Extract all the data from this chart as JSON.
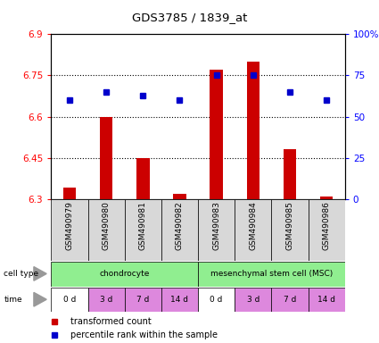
{
  "title": "GDS3785 / 1839_at",
  "samples": [
    "GSM490979",
    "GSM490980",
    "GSM490981",
    "GSM490982",
    "GSM490983",
    "GSM490984",
    "GSM490985",
    "GSM490986"
  ],
  "red_values": [
    6.34,
    6.6,
    6.45,
    6.32,
    6.77,
    6.8,
    6.48,
    6.31
  ],
  "blue_percentiles": [
    60,
    65,
    63,
    60,
    75,
    75,
    65,
    60
  ],
  "ylim_left": [
    6.3,
    6.9
  ],
  "ylim_right": [
    0,
    100
  ],
  "yticks_left": [
    6.3,
    6.45,
    6.6,
    6.75,
    6.9
  ],
  "yticks_right": [
    0,
    25,
    50,
    75,
    100
  ],
  "ytick_labels_left": [
    "6.3",
    "6.45",
    "6.6",
    "6.75",
    "6.9"
  ],
  "ytick_labels_right": [
    "0",
    "25",
    "50",
    "75",
    "100%"
  ],
  "cell_type_labels": [
    "chondrocyte",
    "mesenchymal stem cell (MSC)"
  ],
  "cell_type_color": "#90ee90",
  "time_labels": [
    "0 d",
    "3 d",
    "7 d",
    "14 d",
    "0 d",
    "3 d",
    "7 d",
    "14 d"
  ],
  "time_colors": [
    "#ffffff",
    "#dd88dd",
    "#dd88dd",
    "#dd88dd",
    "#ffffff",
    "#dd88dd",
    "#dd88dd",
    "#dd88dd"
  ],
  "bar_color": "#cc0000",
  "dot_color": "#0000cc",
  "base_value": 6.3,
  "legend_items": [
    "transformed count",
    "percentile rank within the sample"
  ]
}
